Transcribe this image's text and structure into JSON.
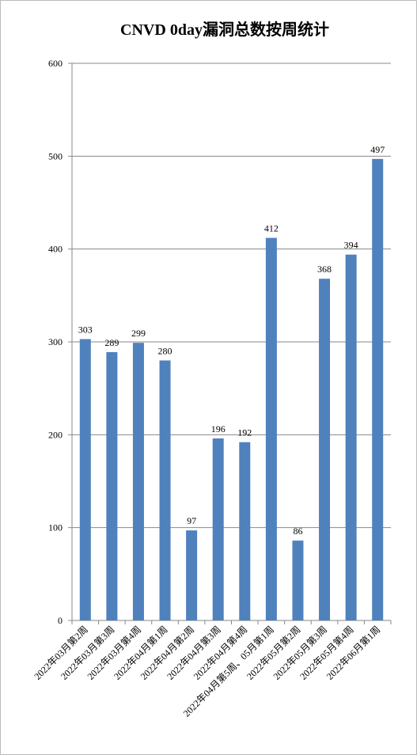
{
  "chart_data": {
    "type": "bar",
    "title": "CNVD 0day漏洞总数按周统计",
    "categories": [
      "2022年03月第2周",
      "2022年03月第3周",
      "2022年03月第4周",
      "2022年04月第1周",
      "2022年04月第2周",
      "2022年04月第3周",
      "2022年04月第4周",
      "2022年04月第5周、05月第1周",
      "2022年05月第2周",
      "2022年05月第3周",
      "2022年05月第4周",
      "2022年06月第1周"
    ],
    "values": [
      303,
      289,
      299,
      280,
      97,
      196,
      192,
      412,
      86,
      368,
      394,
      497
    ],
    "color": "#4f81bd",
    "ylim": [
      0,
      600
    ],
    "yticks": [
      0,
      100,
      200,
      300,
      400,
      500,
      600
    ],
    "grid": true
  }
}
